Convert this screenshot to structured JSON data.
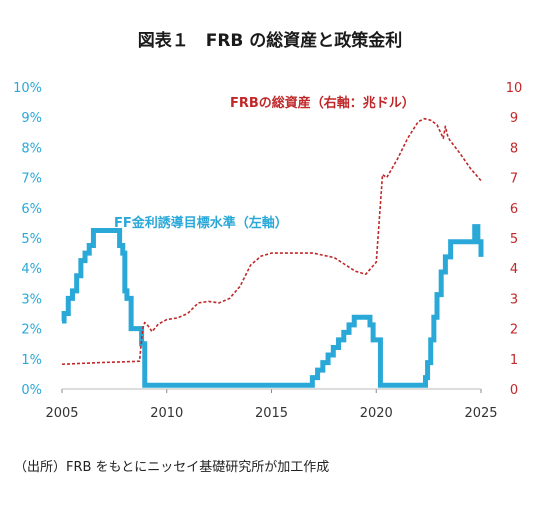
{
  "chart_data": {
    "type": "line",
    "title": "図表１　FRB の総資産と政策金利",
    "source": "（出所）FRB をもとにニッセイ基礎研究所が加工作成",
    "x_ticks": [
      "2005",
      "2010",
      "2015",
      "2020",
      "2025"
    ],
    "xlim": [
      2005,
      2025
    ],
    "y_left": {
      "ticks": [
        "0%",
        "1%",
        "2%",
        "3%",
        "4%",
        "5%",
        "6%",
        "7%",
        "8%",
        "9%",
        "10%"
      ],
      "ylim": [
        0,
        10
      ],
      "color": "#2aa8d8"
    },
    "y_right": {
      "ticks": [
        "0",
        "1",
        "2",
        "3",
        "4",
        "5",
        "6",
        "7",
        "8",
        "9",
        "10"
      ],
      "ylim": [
        0,
        10
      ],
      "color": "#c0282a"
    },
    "grid": false,
    "series": [
      {
        "name": "FF金利誘導目標水準（左軸）",
        "axis": "left",
        "style": "step",
        "color": "#2aa8d8",
        "x": [
          2005.0,
          2005.1,
          2005.3,
          2005.5,
          2005.7,
          2005.9,
          2006.1,
          2006.3,
          2006.5,
          2007.0,
          2007.6,
          2007.75,
          2007.9,
          2008.0,
          2008.1,
          2008.3,
          2008.8,
          2008.95,
          2015.95,
          2016.95,
          2017.2,
          2017.45,
          2017.7,
          2017.95,
          2018.2,
          2018.45,
          2018.7,
          2018.95,
          2019.55,
          2019.7,
          2019.85,
          2020.17,
          2020.2,
          2022.2,
          2022.35,
          2022.45,
          2022.6,
          2022.75,
          2022.9,
          2023.1,
          2023.3,
          2023.55,
          2024.7,
          2024.85,
          2025.0
        ],
        "values": [
          2.25,
          2.5,
          3.0,
          3.25,
          3.75,
          4.25,
          4.5,
          4.75,
          5.25,
          5.25,
          5.25,
          4.75,
          4.5,
          3.25,
          3.0,
          2.0,
          1.5,
          0.125,
          0.125,
          0.375,
          0.625,
          0.875,
          1.125,
          1.375,
          1.625,
          1.875,
          2.125,
          2.375,
          2.375,
          2.125,
          1.625,
          1.625,
          0.125,
          0.125,
          0.375,
          0.875,
          1.625,
          2.375,
          3.125,
          3.875,
          4.375,
          4.875,
          5.375,
          4.875,
          4.375
        ]
      },
      {
        "name": "FRBの総資産（右軸：兆ドル）",
        "axis": "right",
        "style": "dashed",
        "color": "#c0282a",
        "x": [
          2005.0,
          2006.0,
          2007.0,
          2008.0,
          2008.7,
          2008.85,
          2008.95,
          2009.1,
          2009.3,
          2009.6,
          2010.0,
          2010.5,
          2011.0,
          2011.5,
          2012.0,
          2012.5,
          2013.0,
          2013.5,
          2014.0,
          2014.5,
          2015.0,
          2016.0,
          2017.0,
          2018.0,
          2019.0,
          2019.5,
          2020.0,
          2020.3,
          2020.5,
          2021.0,
          2021.5,
          2022.0,
          2022.3,
          2022.6,
          2022.9,
          2023.2,
          2023.3,
          2023.4,
          2023.5,
          2024.0,
          2024.5,
          2025.0
        ],
        "values": [
          0.82,
          0.85,
          0.88,
          0.9,
          0.92,
          2.0,
          2.2,
          2.1,
          1.9,
          2.15,
          2.3,
          2.35,
          2.5,
          2.85,
          2.9,
          2.85,
          3.0,
          3.4,
          4.1,
          4.4,
          4.5,
          4.5,
          4.5,
          4.35,
          3.9,
          3.8,
          4.2,
          7.1,
          7.0,
          7.6,
          8.3,
          8.85,
          8.95,
          8.9,
          8.75,
          8.3,
          8.7,
          8.4,
          8.25,
          7.8,
          7.3,
          6.9
        ]
      }
    ]
  }
}
